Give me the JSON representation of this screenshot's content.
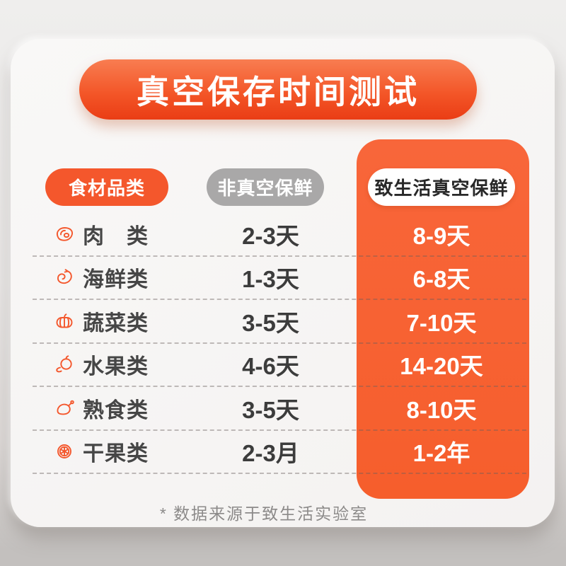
{
  "title": "真空保存时间测试",
  "columns": {
    "category": "食材品类",
    "non_vacuum": "非真空保鲜",
    "vacuum": "致生活真空保鲜"
  },
  "footnote": "* 数据来源于致生活实验室",
  "colors": {
    "accent_orange": "#f4572c",
    "panel_orange": "#f7602f",
    "pill_gray": "#a9a8a8",
    "label_dark": "#464646",
    "value_dark": "#3c3c3c",
    "footnote_gray": "#8c8a89"
  },
  "chart_data": {
    "type": "table",
    "title": "真空保存时间测试",
    "column_headers": [
      "食材品类",
      "非真空保鲜",
      "致生活真空保鲜"
    ],
    "rows": [
      {
        "icon": "meat-icon",
        "label": "肉　类",
        "non_vacuum": "2-3天",
        "vacuum": "8-9天"
      },
      {
        "icon": "shrimp-icon",
        "label": "海鲜类",
        "non_vacuum": "1-3天",
        "vacuum": "6-8天"
      },
      {
        "icon": "vegetable-icon",
        "label": "蔬菜类",
        "non_vacuum": "3-5天",
        "vacuum": "7-10天"
      },
      {
        "icon": "fruit-icon",
        "label": "水果类",
        "non_vacuum": "4-6天",
        "vacuum": "14-20天"
      },
      {
        "icon": "cooked-food-icon",
        "label": "熟食类",
        "non_vacuum": "3-5天",
        "vacuum": "8-10天"
      },
      {
        "icon": "dried-fruit-icon",
        "label": "干果类",
        "non_vacuum": "2-3月",
        "vacuum": "1-2年"
      }
    ],
    "footnote": "* 数据来源于致生活实验室"
  }
}
